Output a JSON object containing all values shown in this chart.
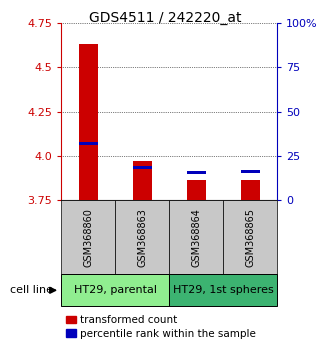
{
  "title": "GDS4511 / 242220_at",
  "samples": [
    "GSM368860",
    "GSM368863",
    "GSM368864",
    "GSM368865"
  ],
  "red_values": [
    4.63,
    3.97,
    3.865,
    3.865
  ],
  "blue_values": [
    4.07,
    3.935,
    3.905,
    3.91
  ],
  "ymin": 3.75,
  "ymax": 4.75,
  "yticks_left": [
    3.75,
    4.0,
    4.25,
    4.5,
    4.75
  ],
  "yticks_right": [
    0,
    25,
    50,
    75,
    100
  ],
  "right_ytick_labels": [
    "0",
    "25",
    "50",
    "75",
    "100%"
  ],
  "cell_line_groups": [
    {
      "label": "HT29, parental",
      "color": "#90ee90",
      "start": 0,
      "end": 2
    },
    {
      "label": "HT29, 1st spheres",
      "color": "#3cb371",
      "start": 2,
      "end": 4
    }
  ],
  "bar_width": 0.35,
  "blue_bar_height": 0.018,
  "red_color": "#cc0000",
  "blue_color": "#0000bb",
  "sample_box_color": "#c8c8c8",
  "grid_color": "#000000",
  "legend_red_label": "transformed count",
  "legend_blue_label": "percentile rank within the sample",
  "cell_line_label": "cell line",
  "title_fontsize": 10,
  "tick_fontsize": 8,
  "sample_fontsize": 7,
  "legend_fontsize": 7.5,
  "cell_fontsize": 8
}
